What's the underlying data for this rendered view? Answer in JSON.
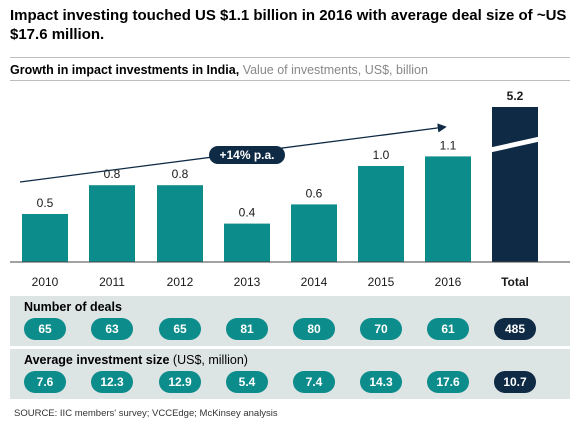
{
  "title": "Impact investing touched US $1.1 billion in 2016 with average deal size of ~US $17.6 million.",
  "subtitle_bold": "Growth in impact investments in India,",
  "subtitle_unit": "Value of investments, US$, billion",
  "chart_data": {
    "type": "bar",
    "categories": [
      "2010",
      "2011",
      "2012",
      "2013",
      "2014",
      "2015",
      "2016",
      "Total"
    ],
    "values": [
      0.5,
      0.8,
      0.8,
      0.4,
      0.6,
      1.0,
      1.1,
      5.2
    ],
    "value_labels": [
      "0.5",
      "0.8",
      "0.8",
      "0.4",
      "0.6",
      "1.0",
      "1.1",
      "5.2"
    ],
    "total_axis_break": true,
    "growth_annotation": "+14% p.a.",
    "colors": {
      "bar": "#0d8c8c",
      "total": "#0f2a45",
      "arrow": "#0f2a45"
    }
  },
  "deals": {
    "label": "Number of deals",
    "values": [
      "65",
      "63",
      "65",
      "81",
      "80",
      "70",
      "61",
      "485"
    ]
  },
  "avg_size": {
    "label_bold": "Average investment size",
    "label_unit": "(US$, million)",
    "values": [
      "7.6",
      "12.3",
      "12.9",
      "5.4",
      "7.4",
      "14.3",
      "17.6",
      "10.7"
    ]
  },
  "source": "SOURCE: IIC members' survey; VCCEdge; McKinsey analysis"
}
